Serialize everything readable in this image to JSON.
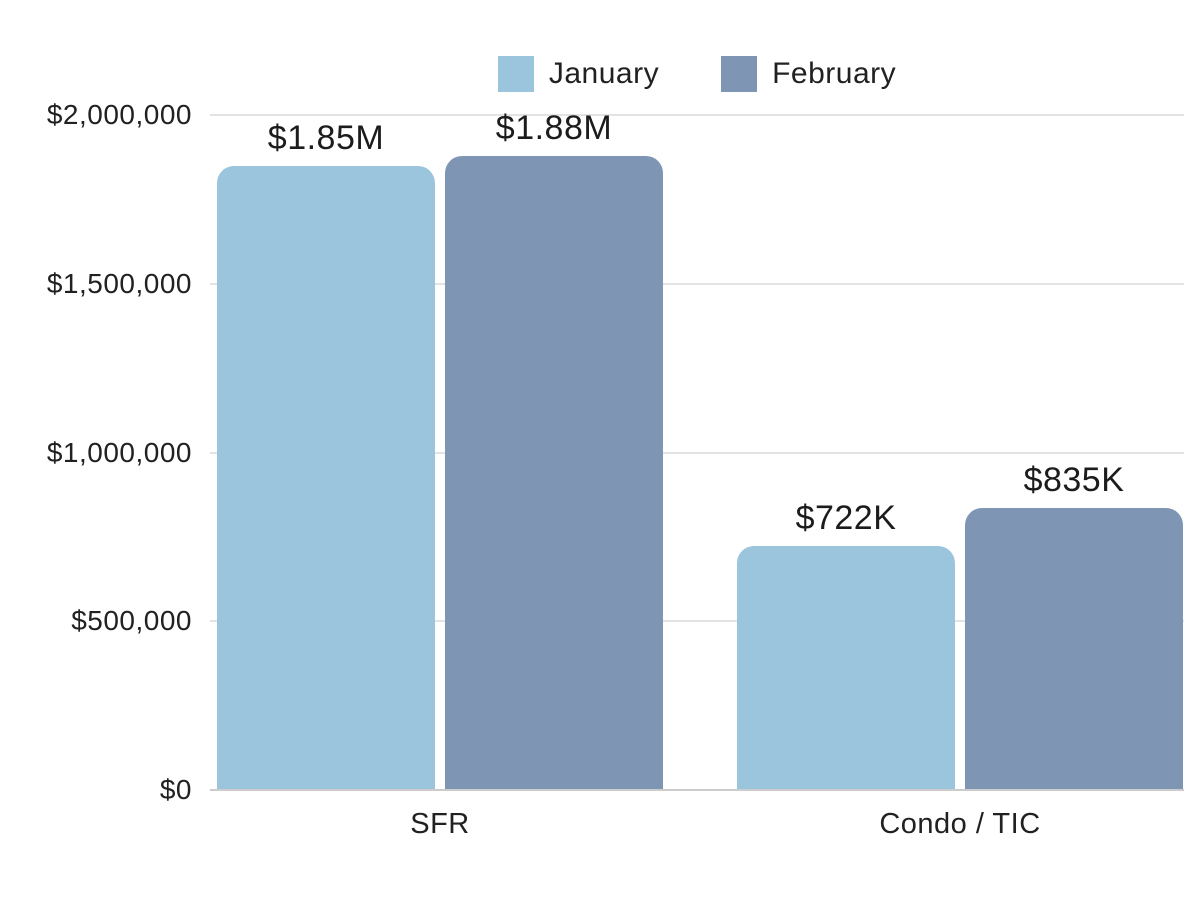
{
  "chart_data": {
    "type": "bar",
    "title": "",
    "categories": [
      "SFR",
      "Condo / TIC"
    ],
    "series": [
      {
        "name": "January",
        "color": "#9bc4dd",
        "values": [
          1850000,
          722000
        ],
        "value_labels": [
          "$1.85M",
          "$722K"
        ]
      },
      {
        "name": "February",
        "color": "#7e96b4",
        "values": [
          1880000,
          835000
        ],
        "value_labels": [
          "$1.88M",
          "$835K"
        ]
      }
    ],
    "y_axis": {
      "range": [
        0,
        2000000
      ],
      "ticks": [
        {
          "value": 0,
          "label": "$0"
        },
        {
          "value": 500000,
          "label": "$500,000"
        },
        {
          "value": 1000000,
          "label": "$1,000,000"
        },
        {
          "value": 1500000,
          "label": "$1,500,000"
        },
        {
          "value": 2000000,
          "label": "$2,000,000"
        }
      ]
    },
    "legend": {
      "position": "top-center",
      "entries": [
        "January",
        "February"
      ]
    },
    "grid": true,
    "colors": {
      "grid_line": "#e3e3e3",
      "axis_line": "#cccccc",
      "label_text": "#1c1c1c"
    }
  }
}
